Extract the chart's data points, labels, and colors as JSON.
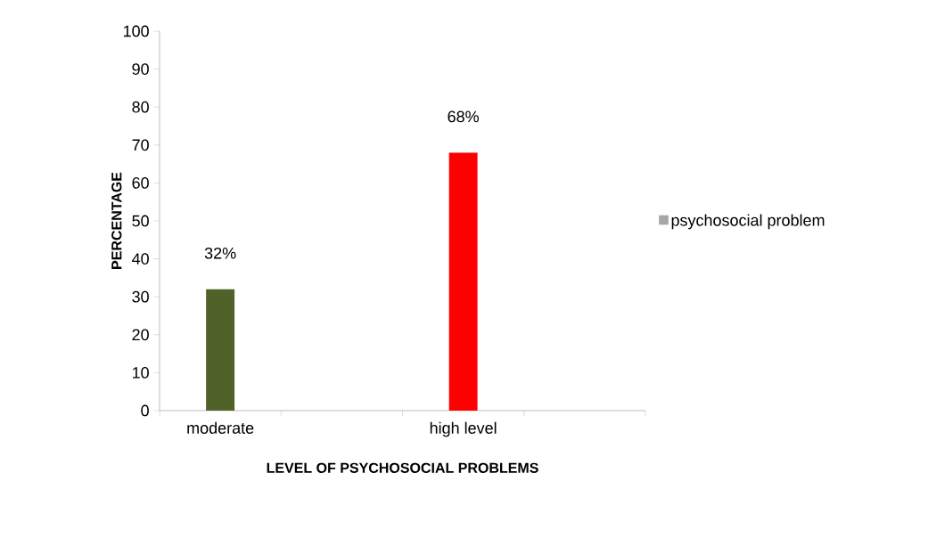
{
  "chart_data": {
    "type": "bar",
    "xlabel": "LEVEL OF PSYCHOSOCIAL PROBLEMS",
    "ylabel": "PERCENTAGE",
    "categories": [
      "moderate",
      null,
      "high level",
      null
    ],
    "series": [
      {
        "name": "psychosocial problem",
        "color": "#a6a6a6",
        "colors": [
          "#4f6228",
          null,
          "#ff0000",
          null
        ],
        "values": [
          32,
          null,
          68,
          null
        ],
        "value_labels": [
          "32%",
          null,
          "68%",
          null
        ]
      }
    ],
    "ylim": [
      0,
      100
    ],
    "yticks": [
      0,
      10,
      20,
      30,
      40,
      50,
      60,
      70,
      80,
      90,
      100
    ],
    "grid": false,
    "legend": "right"
  }
}
